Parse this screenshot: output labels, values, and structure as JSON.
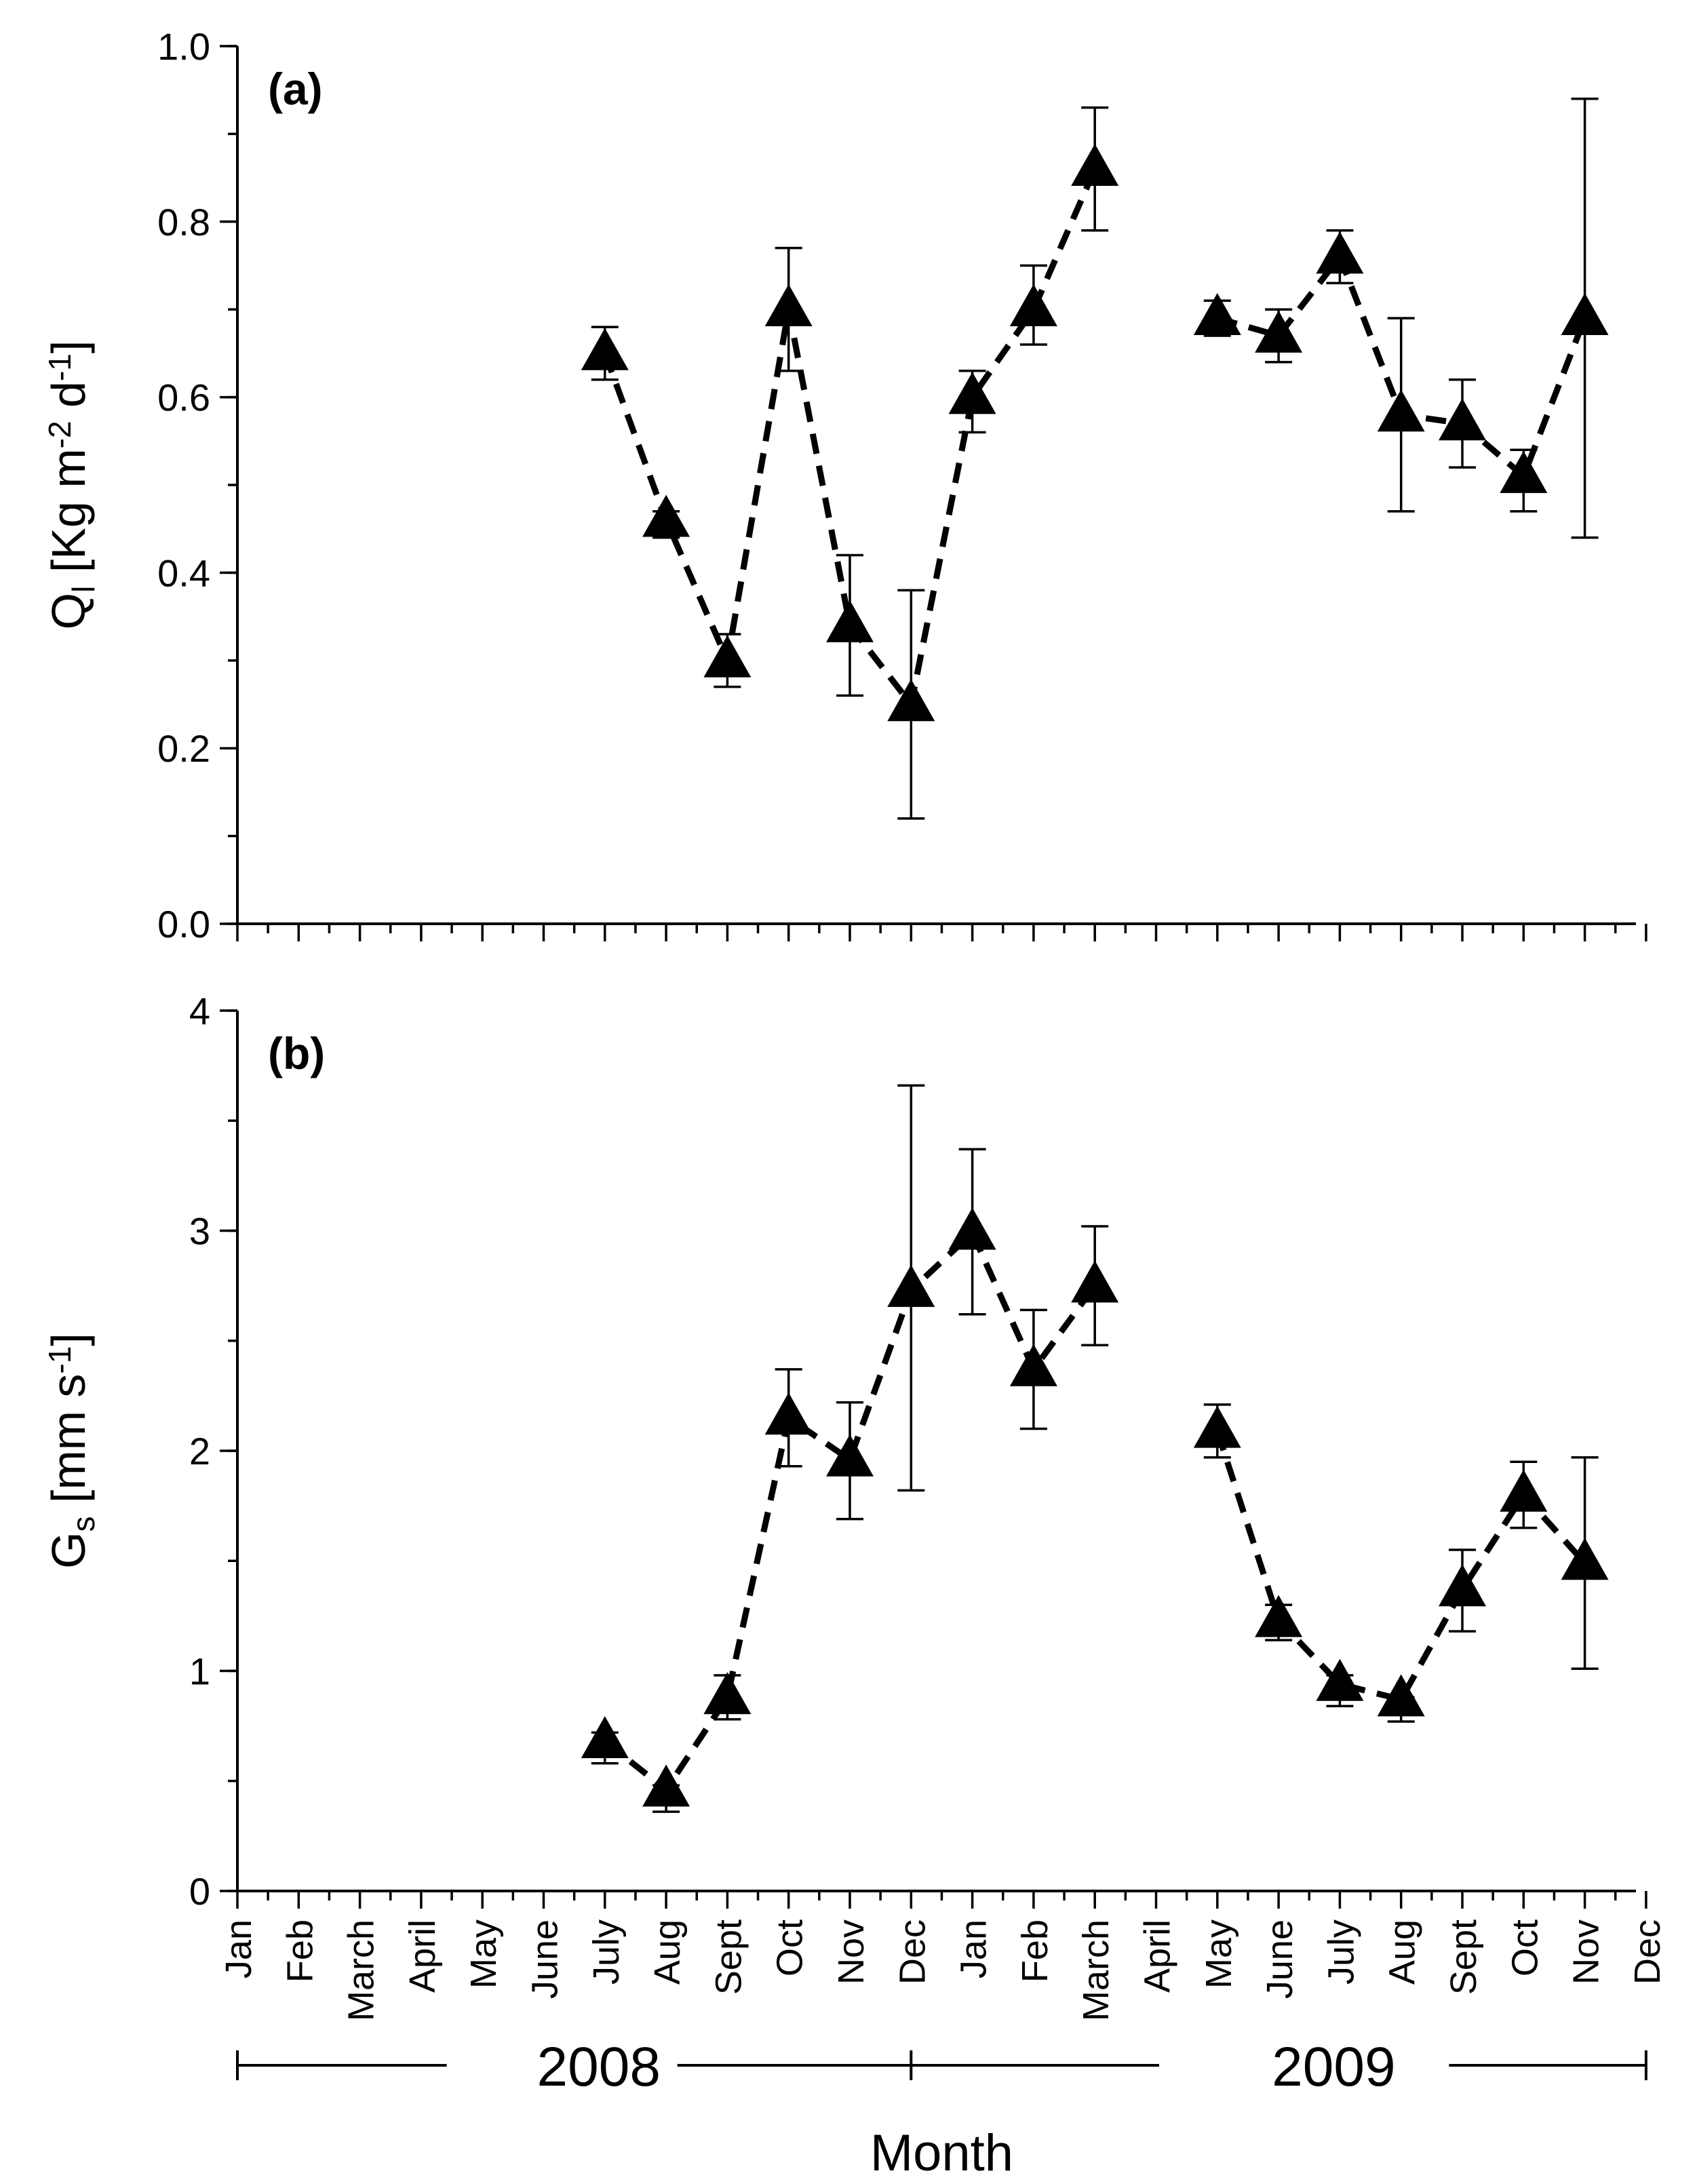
{
  "chart_data": {
    "type": "line",
    "xlabel": "Month",
    "month_labels": [
      "Jan",
      "Feb",
      "March",
      "April",
      "May",
      "June",
      "July",
      "Aug",
      "Sept",
      "Oct",
      "Nov",
      "Dec",
      "Jan",
      "Feb",
      "March",
      "April",
      "May",
      "June",
      "July",
      "Aug",
      "Sept",
      "Oct",
      "Nov",
      "Dec"
    ],
    "years": [
      {
        "label": "2008",
        "start_index": 0,
        "end_index": 11
      },
      {
        "label": "2009",
        "start_index": 11,
        "end_index": 23
      }
    ],
    "panels": [
      {
        "label": "(a)",
        "ylabel_main": "Q",
        "ylabel_sub": "l",
        "ylabel_rest": " [Kg m",
        "ylabel_sup1": "-2",
        "ylabel_mid": " d",
        "ylabel_sup2": "-1",
        "ylabel_end": "]",
        "ylim": [
          0,
          1.0
        ],
        "yticks": [
          "0.0",
          "0.2",
          "0.4",
          "0.6",
          "0.8",
          "1.0"
        ],
        "ytick_values": [
          0,
          0.2,
          0.4,
          0.6,
          0.8,
          1.0
        ],
        "yminor_step": 0.1,
        "segments": [
          {
            "points": [
              {
                "x": 6,
                "y": 0.65,
                "err_hi": 0.68,
                "err_lo": 0.62
              },
              {
                "x": 7,
                "y": 0.46,
                "err_hi": 0.47,
                "err_lo": 0.44
              },
              {
                "x": 8,
                "y": 0.3,
                "err_hi": 0.33,
                "err_lo": 0.27
              },
              {
                "x": 9,
                "y": 0.7,
                "err_hi": 0.77,
                "err_lo": 0.63
              },
              {
                "x": 10,
                "y": 0.34,
                "err_hi": 0.42,
                "err_lo": 0.26
              },
              {
                "x": 11,
                "y": 0.25,
                "err_hi": 0.38,
                "err_lo": 0.12
              },
              {
                "x": 12,
                "y": 0.6,
                "err_hi": 0.63,
                "err_lo": 0.56
              },
              {
                "x": 13,
                "y": 0.7,
                "err_hi": 0.75,
                "err_lo": 0.66
              },
              {
                "x": 14,
                "y": 0.86,
                "err_hi": 0.93,
                "err_lo": 0.79
              }
            ]
          },
          {
            "points": [
              {
                "x": 16,
                "y": 0.69,
                "err_hi": 0.71,
                "err_lo": 0.67
              },
              {
                "x": 17,
                "y": 0.67,
                "err_hi": 0.7,
                "err_lo": 0.64
              },
              {
                "x": 18,
                "y": 0.76,
                "err_hi": 0.79,
                "err_lo": 0.73
              },
              {
                "x": 19,
                "y": 0.58,
                "err_hi": 0.69,
                "err_lo": 0.47
              },
              {
                "x": 20,
                "y": 0.57,
                "err_hi": 0.62,
                "err_lo": 0.52
              },
              {
                "x": 21,
                "y": 0.51,
                "err_hi": 0.54,
                "err_lo": 0.47
              },
              {
                "x": 22,
                "y": 0.69,
                "err_hi": 0.94,
                "err_lo": 0.44
              }
            ]
          }
        ]
      },
      {
        "label": "(b)",
        "ylabel_main": "G",
        "ylabel_sub": "s",
        "ylabel_rest": " [mm s",
        "ylabel_sup1": "-1",
        "ylabel_mid": "",
        "ylabel_sup2": "",
        "ylabel_end": "]",
        "ylim": [
          0,
          4
        ],
        "yticks": [
          "0",
          "1",
          "2",
          "3",
          "4"
        ],
        "ytick_values": [
          0,
          1,
          2,
          3,
          4
        ],
        "yminor_step": 0.5,
        "segments": [
          {
            "points": [
              {
                "x": 6,
                "y": 0.68,
                "err_hi": 0.72,
                "err_lo": 0.58
              },
              {
                "x": 7,
                "y": 0.46,
                "err_hi": 0.48,
                "err_lo": 0.36
              },
              {
                "x": 8,
                "y": 0.88,
                "err_hi": 0.98,
                "err_lo": 0.78
              },
              {
                "x": 9,
                "y": 2.15,
                "err_hi": 2.37,
                "err_lo": 1.93
              },
              {
                "x": 10,
                "y": 1.96,
                "err_hi": 2.22,
                "err_lo": 1.69
              },
              {
                "x": 11,
                "y": 2.73,
                "err_hi": 3.66,
                "err_lo": 1.82
              },
              {
                "x": 12,
                "y": 2.99,
                "err_hi": 3.37,
                "err_lo": 2.62
              },
              {
                "x": 13,
                "y": 2.37,
                "err_hi": 2.64,
                "err_lo": 2.1
              },
              {
                "x": 14,
                "y": 2.75,
                "err_hi": 3.02,
                "err_lo": 2.48
              }
            ]
          },
          {
            "points": [
              {
                "x": 16,
                "y": 2.09,
                "err_hi": 2.21,
                "err_lo": 1.97
              },
              {
                "x": 17,
                "y": 1.23,
                "err_hi": 1.3,
                "err_lo": 1.14
              },
              {
                "x": 18,
                "y": 0.94,
                "err_hi": 0.98,
                "err_lo": 0.84
              },
              {
                "x": 19,
                "y": 0.87,
                "err_hi": 0.88,
                "err_lo": 0.77
              },
              {
                "x": 20,
                "y": 1.37,
                "err_hi": 1.55,
                "err_lo": 1.18
              },
              {
                "x": 21,
                "y": 1.8,
                "err_hi": 1.95,
                "err_lo": 1.65
              },
              {
                "x": 22,
                "y": 1.49,
                "err_hi": 1.97,
                "err_lo": 1.01
              }
            ]
          }
        ]
      }
    ]
  }
}
